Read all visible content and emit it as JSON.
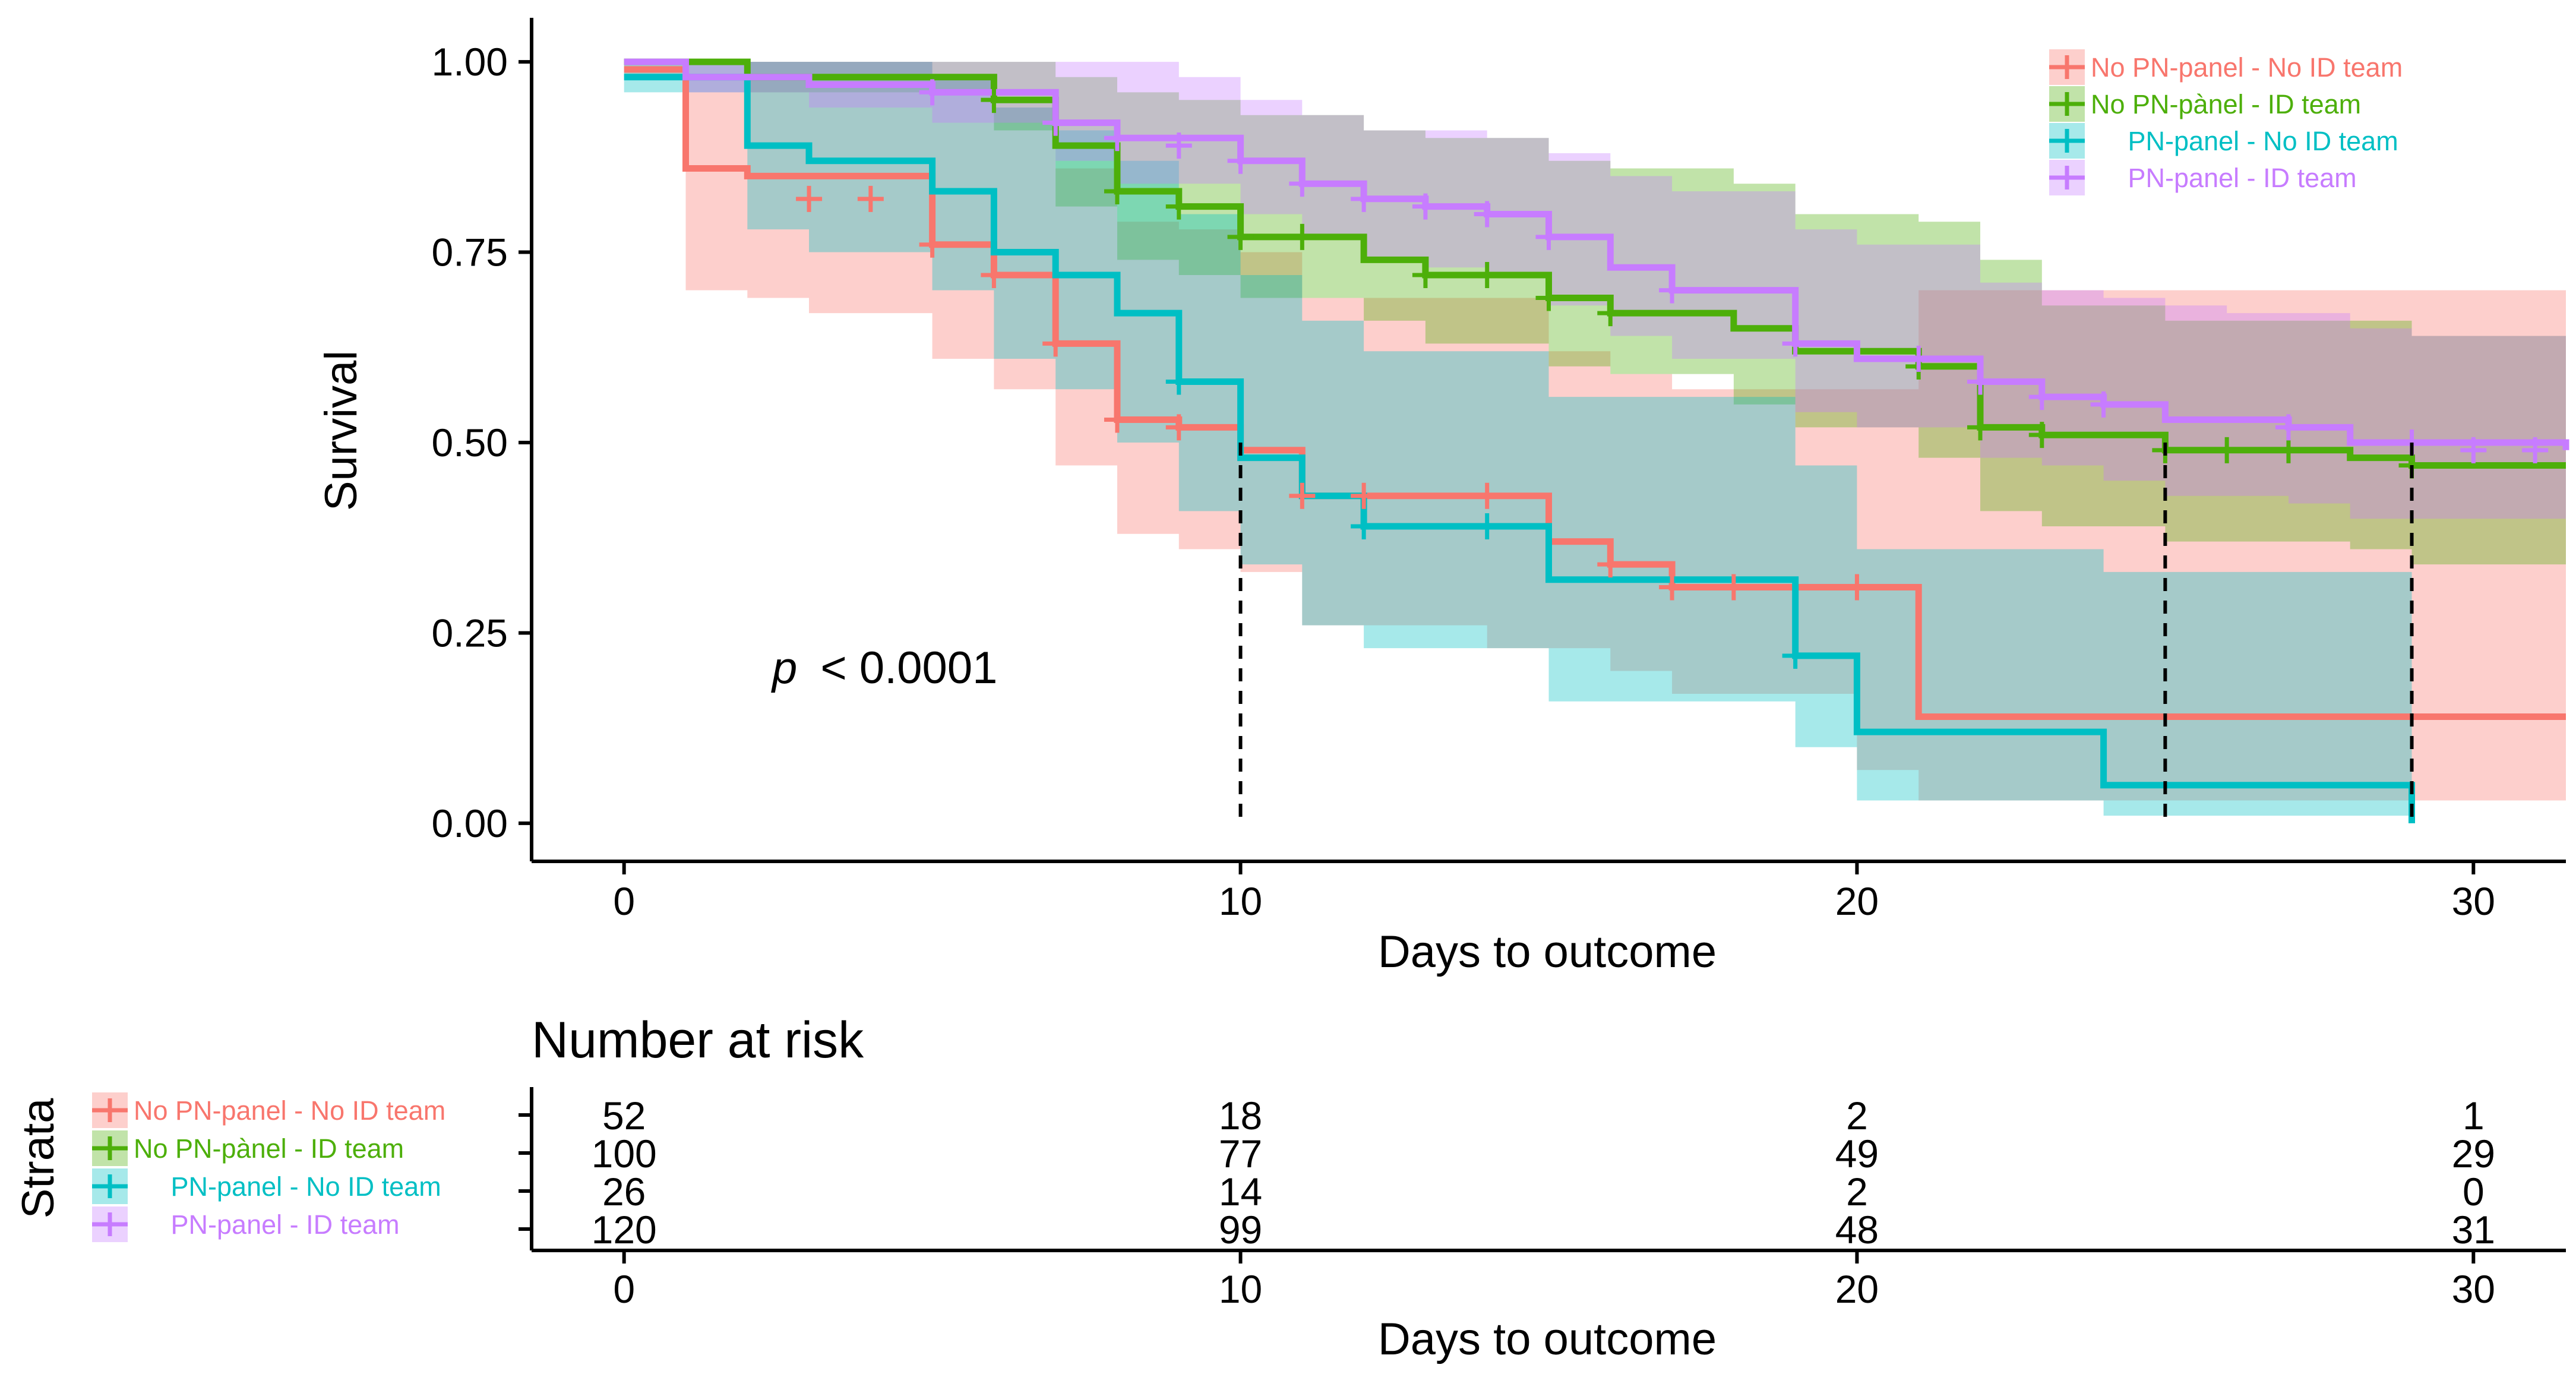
{
  "chart_data": {
    "type": "kaplan-meier",
    "xlabel": "Days to outcome",
    "ylabel": "Survival",
    "xlim": [
      -1.5,
      31.5
    ],
    "ylim": [
      -0.05,
      1.05
    ],
    "xticks": [
      0,
      10,
      20,
      30
    ],
    "yticks": [
      0.0,
      0.25,
      0.5,
      0.75,
      1.0
    ],
    "ytick_labels": [
      "0.00",
      "0.25",
      "0.50",
      "0.75",
      "1.00"
    ],
    "pvalue_prefix": "p",
    "pvalue_text": "< 0.0001",
    "median_lines": [
      10,
      25,
      29
    ],
    "series": [
      {
        "name": "No PN-panel - No ID team",
        "color": "#F8766D",
        "steps": [
          [
            0,
            0.99
          ],
          [
            1,
            0.86
          ],
          [
            2,
            0.85
          ],
          [
            5,
            0.76
          ],
          [
            6,
            0.72
          ],
          [
            7,
            0.63
          ],
          [
            8,
            0.53
          ],
          [
            9,
            0.52
          ],
          [
            10,
            0.49
          ],
          [
            11,
            0.43
          ],
          [
            15,
            0.37
          ],
          [
            16,
            0.34
          ],
          [
            17,
            0.31
          ],
          [
            21,
            0.14
          ],
          [
            31.5,
            0.14
          ]
        ],
        "upper": [
          [
            0,
            1.0
          ],
          [
            1,
            1.0
          ],
          [
            2,
            1.0
          ],
          [
            5,
            0.98
          ],
          [
            6,
            0.94
          ],
          [
            7,
            0.86
          ],
          [
            8,
            0.79
          ],
          [
            9,
            0.78
          ],
          [
            10,
            0.75
          ],
          [
            11,
            0.69
          ],
          [
            15,
            0.62
          ],
          [
            16,
            0.59
          ],
          [
            17,
            0.57
          ],
          [
            21,
            0.7
          ],
          [
            31.5,
            0.7
          ]
        ],
        "lower": [
          [
            0,
            0.98
          ],
          [
            1,
            0.7
          ],
          [
            2,
            0.69
          ],
          [
            3,
            0.67
          ],
          [
            5,
            0.61
          ],
          [
            6,
            0.57
          ],
          [
            7,
            0.47
          ],
          [
            8,
            0.38
          ],
          [
            9,
            0.36
          ],
          [
            10,
            0.33
          ],
          [
            11,
            0.26
          ],
          [
            14,
            0.23
          ],
          [
            16,
            0.2
          ],
          [
            17,
            0.17
          ],
          [
            20,
            0.07
          ],
          [
            21,
            0.03
          ],
          [
            31.5,
            0.03
          ]
        ],
        "censor": [
          [
            3,
            0.82
          ],
          [
            4,
            0.82
          ],
          [
            5,
            0.76
          ],
          [
            6,
            0.72
          ],
          [
            7,
            0.63
          ],
          [
            8,
            0.53
          ],
          [
            9,
            0.52
          ],
          [
            11,
            0.43
          ],
          [
            12,
            0.43
          ],
          [
            14,
            0.43
          ],
          [
            16,
            0.34
          ],
          [
            17,
            0.31
          ],
          [
            18,
            0.31
          ],
          [
            20,
            0.31
          ]
        ]
      },
      {
        "name": "No PN-pànel - ID team",
        "color": "#4DAF0A",
        "steps": [
          [
            0,
            1.0
          ],
          [
            2,
            0.98
          ],
          [
            6,
            0.95
          ],
          [
            7,
            0.89
          ],
          [
            8,
            0.83
          ],
          [
            9,
            0.81
          ],
          [
            10,
            0.77
          ],
          [
            12,
            0.74
          ],
          [
            13,
            0.72
          ],
          [
            15,
            0.69
          ],
          [
            16,
            0.67
          ],
          [
            18,
            0.65
          ],
          [
            19,
            0.62
          ],
          [
            21,
            0.6
          ],
          [
            22,
            0.52
          ],
          [
            23,
            0.51
          ],
          [
            25,
            0.49
          ],
          [
            28,
            0.48
          ],
          [
            29,
            0.47
          ],
          [
            31.5,
            0.47
          ]
        ],
        "upper": [
          [
            0,
            1.0
          ],
          [
            5,
            1.0
          ],
          [
            6,
            1.0
          ],
          [
            7,
            0.98
          ],
          [
            8,
            0.96
          ],
          [
            9,
            0.95
          ],
          [
            10,
            0.93
          ],
          [
            12,
            0.91
          ],
          [
            13,
            0.9
          ],
          [
            15,
            0.87
          ],
          [
            16,
            0.86
          ],
          [
            18,
            0.84
          ],
          [
            19,
            0.8
          ],
          [
            21,
            0.79
          ],
          [
            22,
            0.74
          ],
          [
            23,
            0.68
          ],
          [
            25,
            0.66
          ],
          [
            28,
            0.66
          ],
          [
            29,
            0.64
          ],
          [
            31.5,
            0.64
          ]
        ],
        "lower": [
          [
            0,
            1.0
          ],
          [
            2,
            0.96
          ],
          [
            6,
            0.91
          ],
          [
            7,
            0.81
          ],
          [
            8,
            0.74
          ],
          [
            9,
            0.72
          ],
          [
            10,
            0.69
          ],
          [
            12,
            0.66
          ],
          [
            13,
            0.63
          ],
          [
            15,
            0.6
          ],
          [
            16,
            0.59
          ],
          [
            18,
            0.55
          ],
          [
            19,
            0.52
          ],
          [
            21,
            0.48
          ],
          [
            22,
            0.41
          ],
          [
            23,
            0.39
          ],
          [
            25,
            0.37
          ],
          [
            28,
            0.36
          ],
          [
            29,
            0.34
          ],
          [
            31.5,
            0.34
          ]
        ],
        "censor": [
          [
            6,
            0.95
          ],
          [
            8,
            0.83
          ],
          [
            9,
            0.81
          ],
          [
            10,
            0.77
          ],
          [
            11,
            0.77
          ],
          [
            13,
            0.72
          ],
          [
            14,
            0.72
          ],
          [
            15,
            0.69
          ],
          [
            16,
            0.67
          ],
          [
            21,
            0.6
          ],
          [
            22,
            0.52
          ],
          [
            23,
            0.51
          ],
          [
            25,
            0.49
          ],
          [
            26,
            0.49
          ],
          [
            27,
            0.49
          ],
          [
            29,
            0.47
          ]
        ]
      },
      {
        "name": "PN-panel - No ID team",
        "color": "#00BFC4",
        "steps": [
          [
            0,
            0.98
          ],
          [
            2,
            0.89
          ],
          [
            3,
            0.87
          ],
          [
            5,
            0.83
          ],
          [
            6,
            0.75
          ],
          [
            7,
            0.72
          ],
          [
            8,
            0.67
          ],
          [
            9,
            0.58
          ],
          [
            10,
            0.48
          ],
          [
            11,
            0.43
          ],
          [
            12,
            0.39
          ],
          [
            15,
            0.32
          ],
          [
            19,
            0.22
          ],
          [
            20,
            0.12
          ],
          [
            24,
            0.05
          ],
          [
            29,
            0.05
          ],
          [
            29,
            0.0
          ]
        ],
        "upper": [
          [
            0,
            1.0
          ],
          [
            2,
            1.0
          ],
          [
            5,
            0.98
          ],
          [
            6,
            0.94
          ],
          [
            7,
            0.91
          ],
          [
            8,
            0.87
          ],
          [
            9,
            0.8
          ],
          [
            10,
            0.72
          ],
          [
            11,
            0.66
          ],
          [
            12,
            0.62
          ],
          [
            15,
            0.56
          ],
          [
            19,
            0.47
          ],
          [
            20,
            0.36
          ],
          [
            24,
            0.33
          ],
          [
            29,
            0.33
          ]
        ],
        "lower": [
          [
            0,
            0.96
          ],
          [
            2,
            0.78
          ],
          [
            3,
            0.75
          ],
          [
            5,
            0.7
          ],
          [
            6,
            0.61
          ],
          [
            7,
            0.57
          ],
          [
            8,
            0.5
          ],
          [
            9,
            0.41
          ],
          [
            10,
            0.34
          ],
          [
            11,
            0.26
          ],
          [
            12,
            0.23
          ],
          [
            15,
            0.16
          ],
          [
            19,
            0.1
          ],
          [
            20,
            0.03
          ],
          [
            24,
            0.01
          ],
          [
            29,
            0.01
          ]
        ],
        "censor": [
          [
            9,
            0.58
          ],
          [
            12,
            0.39
          ],
          [
            14,
            0.39
          ],
          [
            19,
            0.22
          ]
        ]
      },
      {
        "name": "PN-panel - ID team",
        "color": "#C77CFF",
        "steps": [
          [
            0,
            1.0
          ],
          [
            1,
            0.98
          ],
          [
            3,
            0.97
          ],
          [
            5,
            0.96
          ],
          [
            7,
            0.92
          ],
          [
            8,
            0.9
          ],
          [
            10,
            0.87
          ],
          [
            11,
            0.84
          ],
          [
            12,
            0.82
          ],
          [
            13,
            0.81
          ],
          [
            14,
            0.8
          ],
          [
            15,
            0.77
          ],
          [
            16,
            0.73
          ],
          [
            17,
            0.7
          ],
          [
            19,
            0.63
          ],
          [
            20,
            0.61
          ],
          [
            22,
            0.58
          ],
          [
            23,
            0.56
          ],
          [
            24,
            0.55
          ],
          [
            25,
            0.53
          ],
          [
            27,
            0.52
          ],
          [
            28,
            0.5
          ],
          [
            31.5,
            0.49
          ]
        ],
        "upper": [
          [
            0,
            1.0
          ],
          [
            8,
            1.0
          ],
          [
            9,
            0.98
          ],
          [
            10,
            0.95
          ],
          [
            11,
            0.93
          ],
          [
            12,
            0.91
          ],
          [
            14,
            0.9
          ],
          [
            15,
            0.88
          ],
          [
            16,
            0.85
          ],
          [
            17,
            0.83
          ],
          [
            19,
            0.78
          ],
          [
            20,
            0.76
          ],
          [
            22,
            0.71
          ],
          [
            23,
            0.7
          ],
          [
            24,
            0.69
          ],
          [
            25,
            0.68
          ],
          [
            26,
            0.67
          ],
          [
            28,
            0.65
          ],
          [
            29,
            0.64
          ],
          [
            31.5,
            0.64
          ]
        ],
        "lower": [
          [
            0,
            1.0
          ],
          [
            1,
            0.96
          ],
          [
            3,
            0.94
          ],
          [
            5,
            0.92
          ],
          [
            7,
            0.87
          ],
          [
            8,
            0.84
          ],
          [
            10,
            0.8
          ],
          [
            11,
            0.77
          ],
          [
            12,
            0.74
          ],
          [
            13,
            0.73
          ],
          [
            14,
            0.72
          ],
          [
            15,
            0.68
          ],
          [
            16,
            0.64
          ],
          [
            17,
            0.61
          ],
          [
            19,
            0.54
          ],
          [
            20,
            0.52
          ],
          [
            22,
            0.48
          ],
          [
            23,
            0.47
          ],
          [
            24,
            0.45
          ],
          [
            25,
            0.43
          ],
          [
            27,
            0.42
          ],
          [
            28,
            0.4
          ],
          [
            31.5,
            0.38
          ]
        ],
        "censor": [
          [
            5,
            0.96
          ],
          [
            7,
            0.92
          ],
          [
            8,
            0.9
          ],
          [
            9,
            0.89
          ],
          [
            10,
            0.87
          ],
          [
            11,
            0.84
          ],
          [
            12,
            0.82
          ],
          [
            13,
            0.81
          ],
          [
            14,
            0.8
          ],
          [
            15,
            0.77
          ],
          [
            17,
            0.7
          ],
          [
            19,
            0.63
          ],
          [
            21,
            0.61
          ],
          [
            22,
            0.58
          ],
          [
            23,
            0.56
          ],
          [
            24,
            0.55
          ],
          [
            27,
            0.52
          ],
          [
            29,
            0.5
          ],
          [
            30,
            0.49
          ],
          [
            31,
            0.49
          ]
        ]
      }
    ],
    "risk_table": {
      "title": "Number at risk",
      "xlabel": "Days to outcome",
      "ylabel": "Strata",
      "times": [
        0,
        10,
        20,
        30
      ],
      "rows": [
        {
          "name": "No PN-panel - No ID team",
          "values": [
            "52",
            "18",
            "2",
            "1"
          ]
        },
        {
          "name": "No PN-pànel - ID team",
          "values": [
            "100",
            "77",
            "49",
            "29"
          ]
        },
        {
          "name": "PN-panel - No ID team",
          "values": [
            "26",
            "14",
            "2",
            "0"
          ]
        },
        {
          "name": "PN-panel - ID team",
          "values": [
            "120",
            "99",
            "48",
            "31"
          ]
        }
      ]
    }
  }
}
